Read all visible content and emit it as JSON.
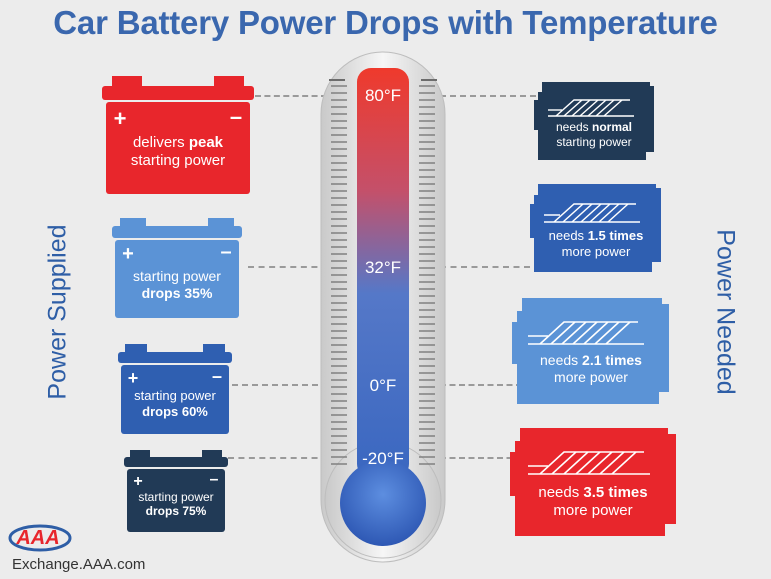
{
  "title": "Car Battery Power Drops with Temperature",
  "left_label": "Power Supplied",
  "right_label": "Power Needed",
  "thermometer": {
    "temps": [
      "80°F",
      "32°F",
      "0°F",
      "-20°F"
    ]
  },
  "batteries": [
    {
      "line1_pre": "delivers ",
      "line1_bold": "peak",
      "line2_pre": "starting power",
      "line2_bold": "",
      "color": "#e8262c"
    },
    {
      "line1_pre": "starting power",
      "line1_bold": "",
      "line2_pre": "",
      "line2_bold": "drops 35%",
      "color": "#5b93d6"
    },
    {
      "line1_pre": "starting power",
      "line1_bold": "",
      "line2_pre": "",
      "line2_bold": "drops 60%",
      "color": "#2f5fb1"
    },
    {
      "line1_pre": "starting power",
      "line1_bold": "",
      "line2_pre": "",
      "line2_bold": "drops 75%",
      "color": "#213a56"
    }
  ],
  "engines": [
    {
      "line1_pre": "needs ",
      "line1_bold": "normal",
      "line2": "starting power",
      "color": "#213a56"
    },
    {
      "line1_pre": "needs ",
      "line1_bold": "1.5 times",
      "line2": "more power",
      "color": "#2f5fb1"
    },
    {
      "line1_pre": "needs ",
      "line1_bold": "2.1 times",
      "line2": "more power",
      "color": "#5b93d6"
    },
    {
      "line1_pre": "needs ",
      "line1_bold": "3.5 times",
      "line2": "more power",
      "color": "#e8262c"
    }
  ],
  "footer": "Exchange.AAA.com",
  "logo_text": "AAA",
  "colors": {
    "title": "#3a67ae",
    "red": "#e8262c",
    "light_blue": "#5b93d6",
    "mid_blue": "#2f5fb1",
    "navy": "#213a56"
  }
}
